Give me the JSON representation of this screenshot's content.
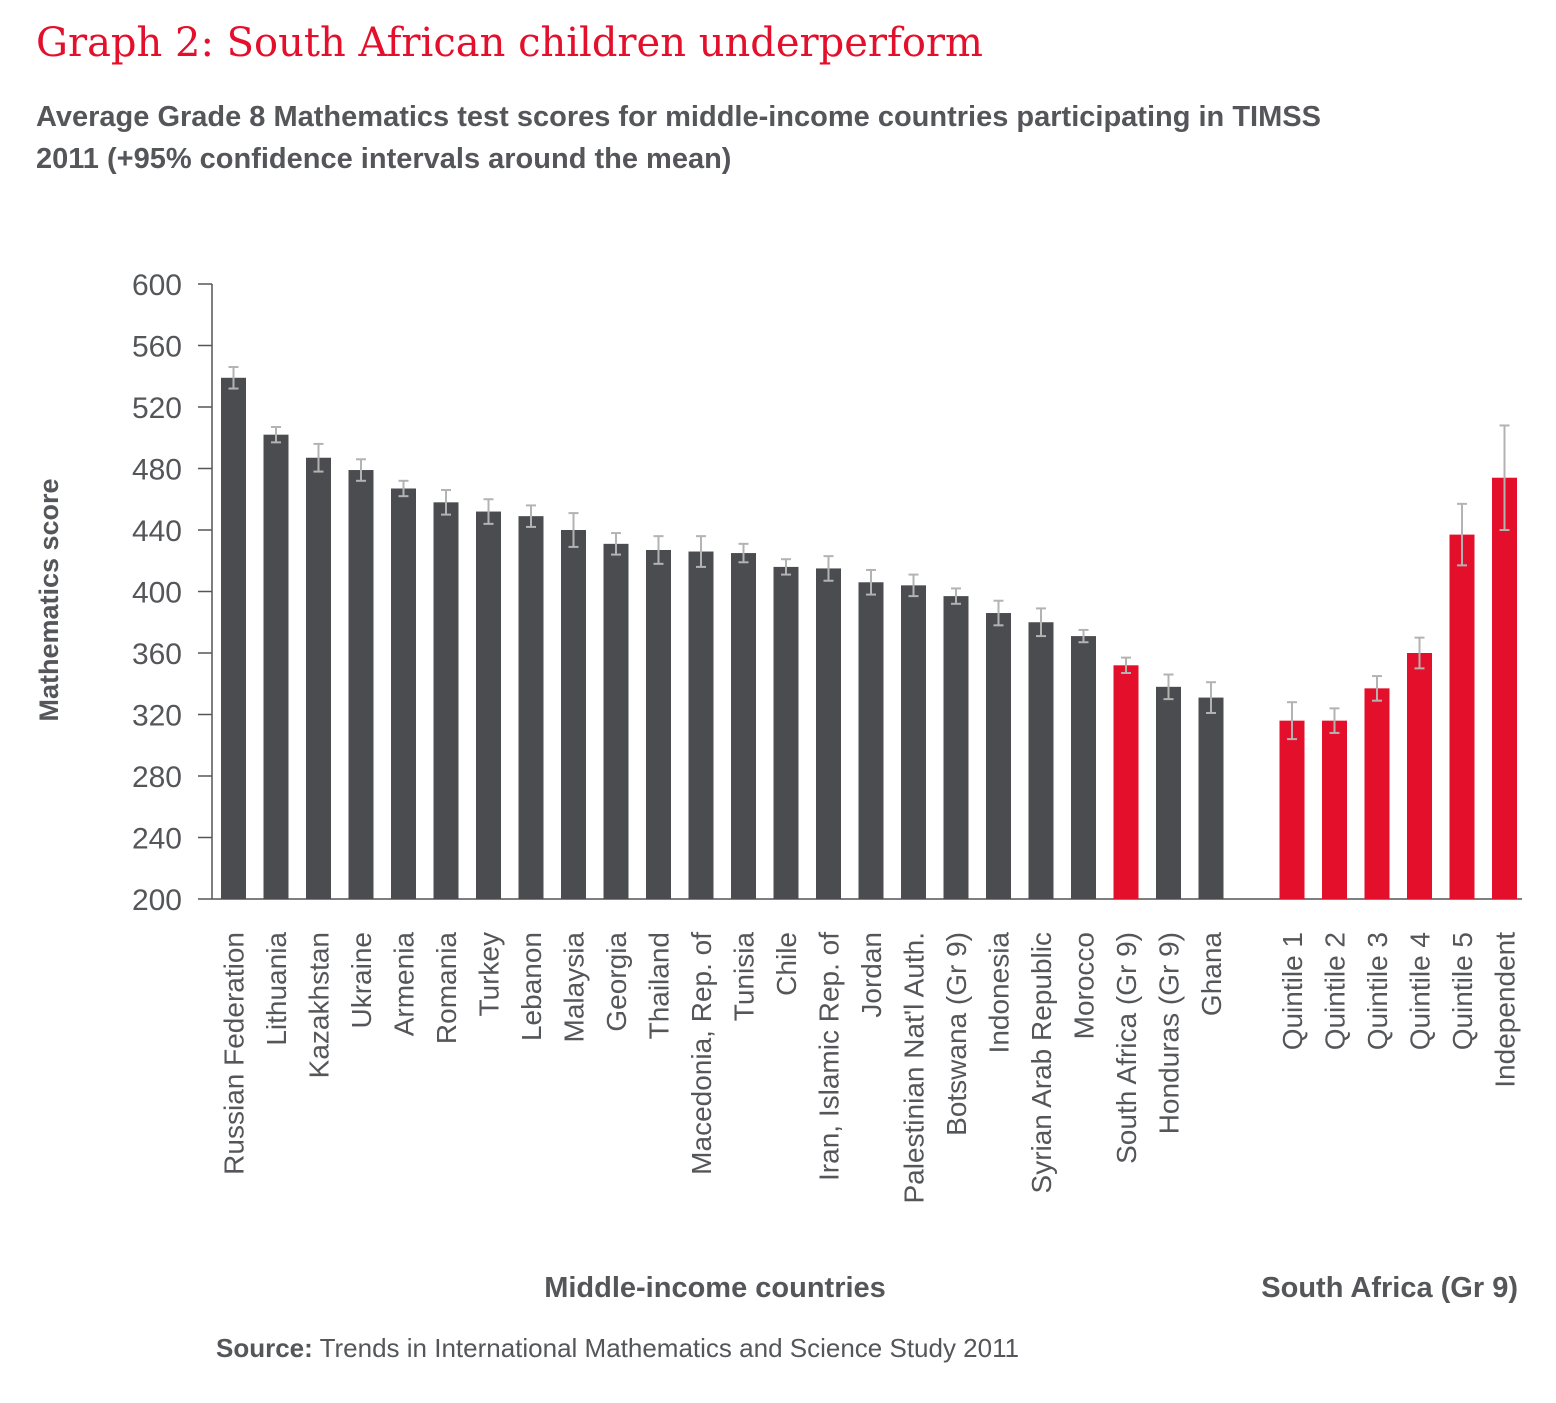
{
  "header": {
    "title": "Graph 2: South African children underperform",
    "subtitle": "Average Grade 8 Mathematics test scores for middle-income countries participating in TIMSS 2011 (+95% confidence intervals around the mean)"
  },
  "source": {
    "label": "Source:",
    "text": "Trends in International Mathematics and Science Study 2011"
  },
  "colors": {
    "dark_bar": "#4a4c50",
    "highlight_bar": "#e30f2b",
    "error_bar": "#b3b3b3",
    "text": "#545659",
    "title": "#e30f2b"
  },
  "chart_data": {
    "type": "bar",
    "ylabel": "Mathematics score",
    "ylim": [
      200,
      600
    ],
    "yticks": [
      200,
      240,
      280,
      320,
      360,
      400,
      440,
      480,
      520,
      560,
      600
    ],
    "groups": [
      {
        "label": "Middle-income countries",
        "categories": [
          "Russian Federation",
          "Lithuania",
          "Kazakhstan",
          "Ukraine",
          "Armenia",
          "Romania",
          "Turkey",
          "Lebanon",
          "Malaysia",
          "Georgia",
          "Thailand",
          "Macedonia, Rep. of",
          "Tunisia",
          "Chile",
          "Iran, Islamic Rep. of",
          "Jordan",
          "Palestinian Nat'l Auth.",
          "Botswana (Gr 9)",
          "Indonesia",
          "Syrian Arab Republic",
          "Morocco",
          "South Africa (Gr 9)",
          "Honduras (Gr 9)",
          "Ghana"
        ],
        "values": [
          539,
          502,
          487,
          479,
          467,
          458,
          452,
          449,
          440,
          431,
          427,
          426,
          425,
          416,
          415,
          406,
          404,
          397,
          386,
          380,
          371,
          352,
          338,
          331
        ],
        "ci": [
          7,
          5,
          9,
          7,
          5,
          8,
          8,
          7,
          11,
          7,
          9,
          10,
          6,
          5,
          8,
          8,
          7,
          5,
          8,
          9,
          4,
          5,
          8,
          10
        ],
        "highlight": [
          false,
          false,
          false,
          false,
          false,
          false,
          false,
          false,
          false,
          false,
          false,
          false,
          false,
          false,
          false,
          false,
          false,
          false,
          false,
          false,
          false,
          true,
          false,
          false
        ]
      },
      {
        "label": "South Africa (Gr 9)",
        "categories": [
          "Quintile 1",
          "Quintile 2",
          "Quintile 3",
          "Quintile 4",
          "Quintile 5",
          "Independent"
        ],
        "values": [
          316,
          316,
          337,
          360,
          437,
          474
        ],
        "ci": [
          12,
          8,
          8,
          10,
          20,
          34
        ],
        "highlight": [
          true,
          true,
          true,
          true,
          true,
          true
        ]
      }
    ],
    "grid": false,
    "legend": "none"
  }
}
